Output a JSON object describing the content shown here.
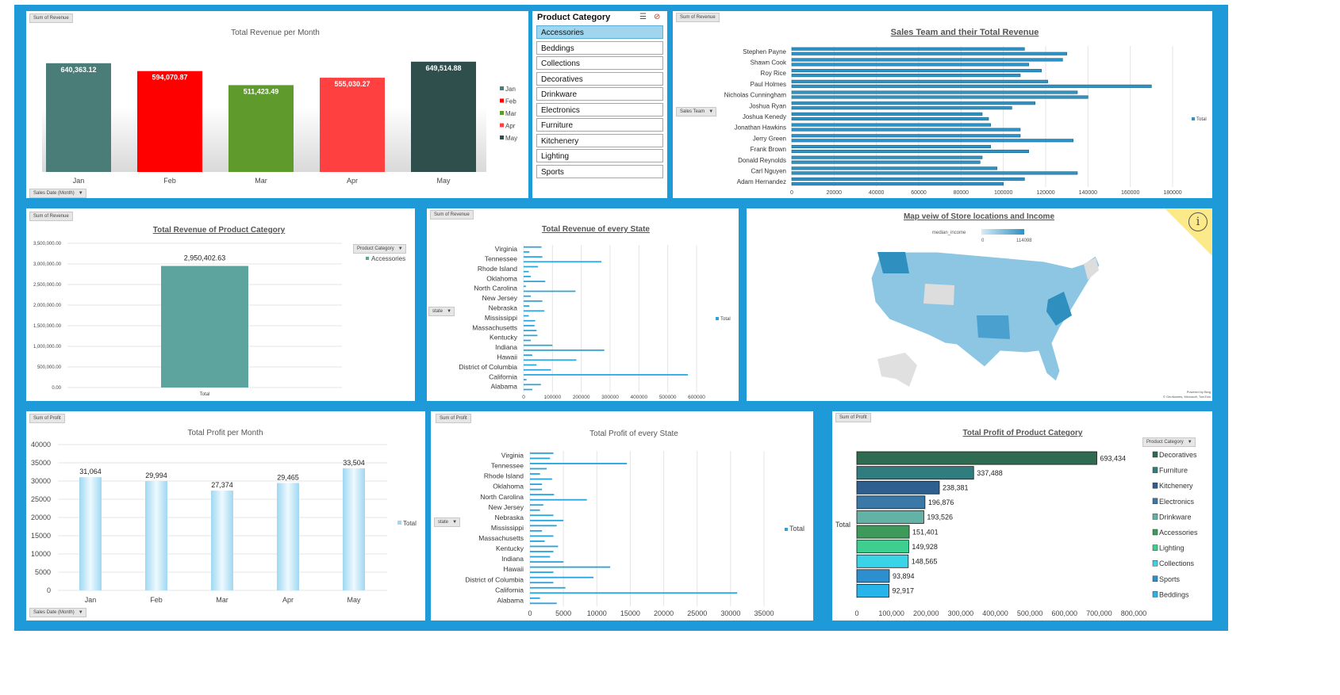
{
  "slicer": {
    "title": "Product Category",
    "items": [
      "Accessories",
      "Beddings",
      "Collections",
      "Decoratives",
      "Drinkware",
      "Electronics",
      "Furniture",
      "Kitchenery",
      "Lighting",
      "Sports"
    ],
    "selected": "Accessories"
  },
  "buttons": {
    "sum_revenue": "Sum of Revenue",
    "sum_profit": "Sum of Profit",
    "sales_date": "Sales Date (Month)",
    "sales_team": "Sales Team",
    "state": "state",
    "product_category": "Product Category"
  },
  "map": {
    "title": "Map veiw of Store locations and Income",
    "legend_label": "median_income",
    "legend_min": "0",
    "legend_max": "114098",
    "credit1": "Powered by Bing",
    "credit2": "© GeoNames, Microsoft, TomTom"
  },
  "chart_data": [
    {
      "id": "rev_month",
      "type": "bar",
      "title": "Total Revenue per Month",
      "categories": [
        "Jan",
        "Feb",
        "Mar",
        "Apr",
        "May"
      ],
      "values": [
        640363.12,
        594070.87,
        511423.49,
        555030.27,
        649514.88
      ],
      "labels": [
        "640,363.12",
        "594,070.87",
        "511,423.49",
        "555,030.27",
        "649,514.88"
      ],
      "colors": [
        "#4a7c78",
        "#ff0000",
        "#5e9a2c",
        "#ff4040",
        "#2f4f4c"
      ],
      "legend": [
        "Jan",
        "Feb",
        "Mar",
        "Apr",
        "May"
      ],
      "legend_position": "right"
    },
    {
      "id": "sales_team",
      "type": "bar",
      "orientation": "horizontal",
      "title": "Sales Team and their Total Revenue",
      "categories": [
        "Stephen Payne",
        "Shawn Cook",
        "Roy Rice",
        "Paul Holmes",
        "Nicholas Cunningham",
        "Joshua Ryan",
        "Joshua Kenedy",
        "Jonathan Hawkins",
        "Jerry Green",
        "Frank Brown",
        "Donald Reynolds",
        "Carl Nguyen",
        "Adam Hernandez"
      ],
      "series": [
        {
          "name": "Total",
          "values": [
            [
              110000,
              130000
            ],
            [
              128000,
              112000
            ],
            [
              118000,
              108000
            ],
            [
              121000,
              170000
            ],
            [
              135000,
              140000
            ],
            [
              115000,
              104000
            ],
            [
              90000,
              93000
            ],
            [
              94000,
              108000
            ],
            [
              108000,
              133000
            ],
            [
              94000,
              112000
            ],
            [
              90000,
              89000
            ],
            [
              97000,
              135000
            ],
            [
              110000,
              100000
            ]
          ]
        }
      ],
      "xticks": [
        "0",
        "20000",
        "40000",
        "60000",
        "80000",
        "100000",
        "120000",
        "140000",
        "160000",
        "180000"
      ],
      "xlim": [
        0,
        180000
      ],
      "legend": [
        "Total"
      ],
      "legend_position": "right"
    },
    {
      "id": "rev_category",
      "type": "bar",
      "title": "Total Revenue of Product Category",
      "categories": [
        "Total"
      ],
      "series": [
        {
          "name": "Accessories",
          "values": [
            2950402.63
          ]
        }
      ],
      "labels": [
        "2,950,402.63"
      ],
      "yticks": [
        "0.00",
        "500,000.00",
        "1,000,000.00",
        "1,500,000.00",
        "2,000,000.00",
        "2,500,000.00",
        "3,000,000.00",
        "3,500,000.00"
      ],
      "ylim": [
        0,
        3500000
      ],
      "legend": [
        "Accessories"
      ],
      "legend_position": "right"
    },
    {
      "id": "rev_state",
      "type": "bar",
      "orientation": "horizontal",
      "title": "Total Revenue of every State",
      "state_labels": [
        "Virginia",
        "Tennessee",
        "Rhode Island",
        "Oklahoma",
        "North Carolina",
        "New Jersey",
        "Nebraska",
        "Mississippi",
        "Massachusetts",
        "Kentucky",
        "Indiana",
        "Hawaii",
        "District of Columbia",
        "California",
        "Alabama"
      ],
      "values": [
        62000,
        20000,
        65000,
        270000,
        50000,
        18000,
        25000,
        75000,
        8000,
        180000,
        25000,
        65000,
        20000,
        72000,
        18000,
        40000,
        38000,
        45000,
        48000,
        25000,
        100000,
        280000,
        30000,
        183000,
        45000,
        95000,
        570000,
        10000,
        60000,
        30000
      ],
      "xticks": [
        "0",
        "100000",
        "200000",
        "300000",
        "400000",
        "500000",
        "600000"
      ],
      "xlim": [
        0,
        600000
      ],
      "legend": [
        "Total"
      ],
      "legend_position": "right"
    },
    {
      "id": "profit_month",
      "type": "bar",
      "title": "Total Profit per Month",
      "categories": [
        "Jan",
        "Feb",
        "Mar",
        "Apr",
        "May"
      ],
      "values": [
        31064,
        29994,
        27374,
        29465,
        33504
      ],
      "labels": [
        "31,064",
        "29,994",
        "27,374",
        "29,465",
        "33,504"
      ],
      "yticks": [
        "0",
        "5000",
        "10000",
        "15000",
        "20000",
        "25000",
        "30000",
        "35000",
        "40000"
      ],
      "ylim": [
        0,
        40000
      ],
      "legend": [
        "Total"
      ],
      "legend_position": "right"
    },
    {
      "id": "profit_state",
      "type": "bar",
      "orientation": "horizontal",
      "title": "Total Profit of every State",
      "state_labels": [
        "Virginia",
        "Tennessee",
        "Rhode Island",
        "Oklahoma",
        "North Carolina",
        "New Jersey",
        "Nebraska",
        "Mississippi",
        "Massachusetts",
        "Kentucky",
        "Indiana",
        "Hawaii",
        "District of Columbia",
        "California",
        "Alabama"
      ],
      "values": [
        3500,
        3000,
        14500,
        2500,
        1500,
        3300,
        1800,
        1800,
        3600,
        8500,
        2000,
        1500,
        3500,
        5000,
        4000,
        1800,
        3500,
        2200,
        4200,
        3500,
        3000,
        5000,
        12000,
        3500,
        9500,
        3500,
        5300,
        31000,
        1500,
        4000
      ],
      "xticks": [
        "0",
        "5000",
        "10000",
        "15000",
        "20000",
        "25000",
        "30000",
        "35000"
      ],
      "xlim": [
        0,
        35000
      ],
      "legend": [
        "Total"
      ],
      "legend_position": "right"
    },
    {
      "id": "profit_category",
      "type": "bar",
      "orientation": "horizontal",
      "title": "Total Profit of Product Category",
      "series_label": "Total",
      "categories": [
        "Decoratives",
        "Furniture",
        "Kitchenery",
        "Electronics",
        "Drinkware",
        "Accessories",
        "Lighting",
        "Collections",
        "Sports",
        "Beddings"
      ],
      "values": [
        693434,
        337488,
        238381,
        196876,
        193526,
        151401,
        149928,
        148565,
        93894,
        92917
      ],
      "labels": [
        "693,434",
        "337,488",
        "238,381",
        "196,876",
        "193,526",
        "151,401",
        "149,928",
        "148,565",
        "93,894",
        "92,917"
      ],
      "colors": [
        "#2e6b50",
        "#2f7d7f",
        "#2f5f8e",
        "#3a78a8",
        "#62b3a6",
        "#3e9a5a",
        "#3ecf90",
        "#3ad4e8",
        "#2e8fd0",
        "#27b4ea"
      ],
      "xticks": [
        "0",
        "100,000",
        "200,000",
        "300,000",
        "400,000",
        "500,000",
        "600,000",
        "700,000",
        "800,000"
      ],
      "xlim": [
        0,
        800000
      ],
      "legend": [
        "Decoratives",
        "Furniture",
        "Kitchenery",
        "Electronics",
        "Drinkware",
        "Accessories",
        "Lighting",
        "Collections",
        "Sports",
        "Beddings"
      ],
      "legend_position": "right"
    }
  ]
}
